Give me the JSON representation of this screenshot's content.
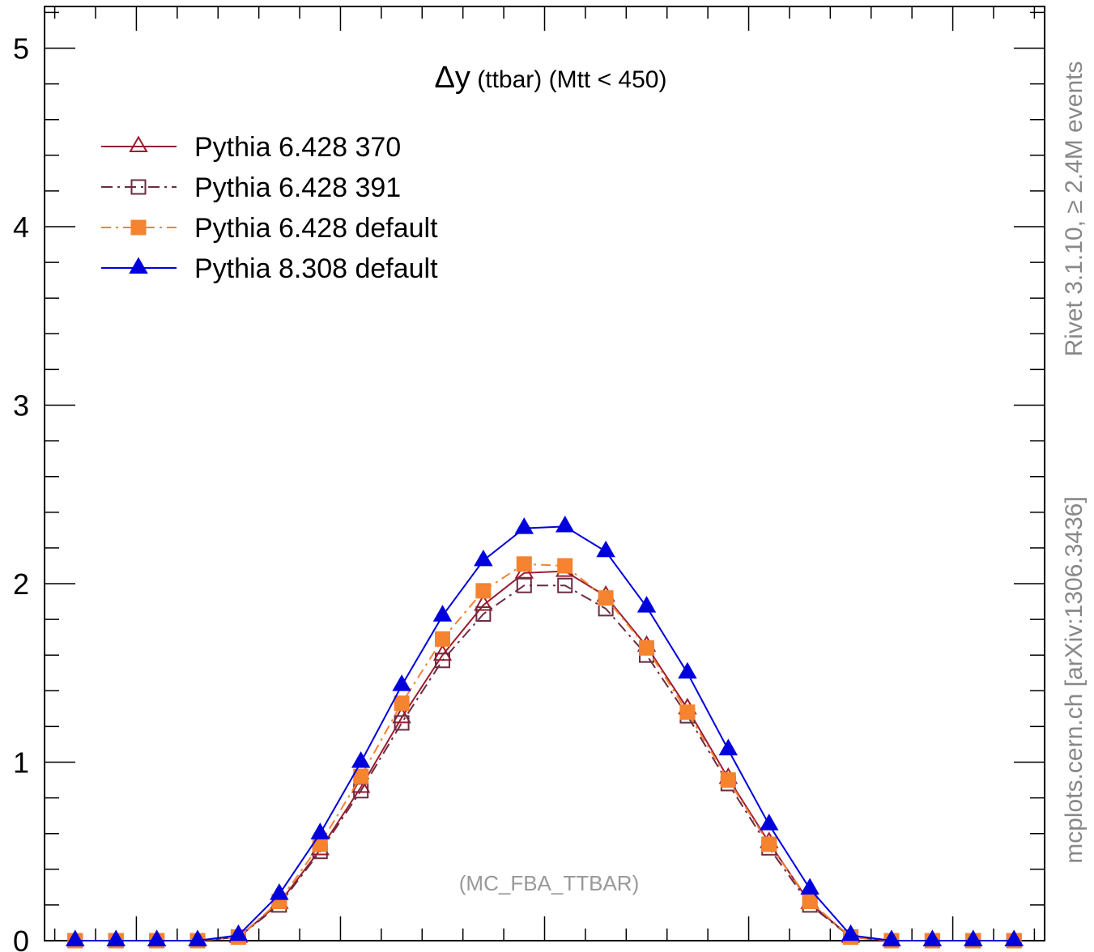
{
  "chart_data": {
    "type": "line",
    "title_symbol": "Δy",
    "title_rest": " (ttbar) (Mtt < 450)",
    "xlabel": "",
    "ylabel": "",
    "ylim": [
      0,
      5.2
    ],
    "y_ticks": [
      "0",
      "1",
      "2",
      "3",
      "4",
      "5"
    ],
    "grid": false,
    "legend_position": "top-left",
    "x": [
      -11.5,
      -10.5,
      -9.5,
      -8.5,
      -7.5,
      -6.5,
      -5.5,
      -4.5,
      -3.5,
      -2.5,
      -1.5,
      -0.5,
      0.5,
      1.5,
      2.5,
      3.5,
      4.5,
      5.5,
      6.5,
      7.5,
      8.5,
      9.5,
      10.5,
      11.5
    ],
    "series": [
      {
        "name": "Pythia 6.428 370",
        "color": "#9b1b30",
        "line": "solid",
        "marker": "triangle-open",
        "values": [
          0,
          0,
          0,
          0,
          0.02,
          0.21,
          0.51,
          0.86,
          1.25,
          1.6,
          1.88,
          2.06,
          2.07,
          1.93,
          1.65,
          1.3,
          0.91,
          0.55,
          0.21,
          0.02,
          0,
          0,
          0,
          0
        ]
      },
      {
        "name": "Pythia 6.428 391",
        "color": "#6b2c40",
        "line": "dashdot",
        "marker": "square-open",
        "values": [
          0,
          0,
          0,
          0,
          0.02,
          0.2,
          0.5,
          0.84,
          1.22,
          1.57,
          1.83,
          1.99,
          1.99,
          1.86,
          1.6,
          1.26,
          0.88,
          0.52,
          0.2,
          0.02,
          0,
          0,
          0,
          0
        ]
      },
      {
        "name": "Pythia 6.428 default",
        "color": "#f5832f",
        "line": "dashdot-orange",
        "marker": "square-filled",
        "values": [
          0,
          0,
          0,
          0,
          0.02,
          0.22,
          0.54,
          0.92,
          1.33,
          1.69,
          1.96,
          2.11,
          2.1,
          1.92,
          1.64,
          1.28,
          0.9,
          0.54,
          0.22,
          0.02,
          0,
          0,
          0,
          0
        ]
      },
      {
        "name": "Pythia 8.308 default",
        "color": "#0000dd",
        "line": "solid",
        "marker": "triangle-filled",
        "values": [
          0,
          0,
          0,
          0,
          0.03,
          0.26,
          0.6,
          1.0,
          1.43,
          1.82,
          2.13,
          2.31,
          2.32,
          2.18,
          1.87,
          1.5,
          1.07,
          0.65,
          0.29,
          0.03,
          0,
          0,
          0,
          0
        ]
      }
    ],
    "annotation": "(MC_FBA_TTBAR)",
    "side_labels": {
      "rivet": "Rivet 3.1.10, ≥ 2.4M events",
      "mcplots": "mcplots.cern.ch [arXiv:1306.3436]"
    }
  }
}
